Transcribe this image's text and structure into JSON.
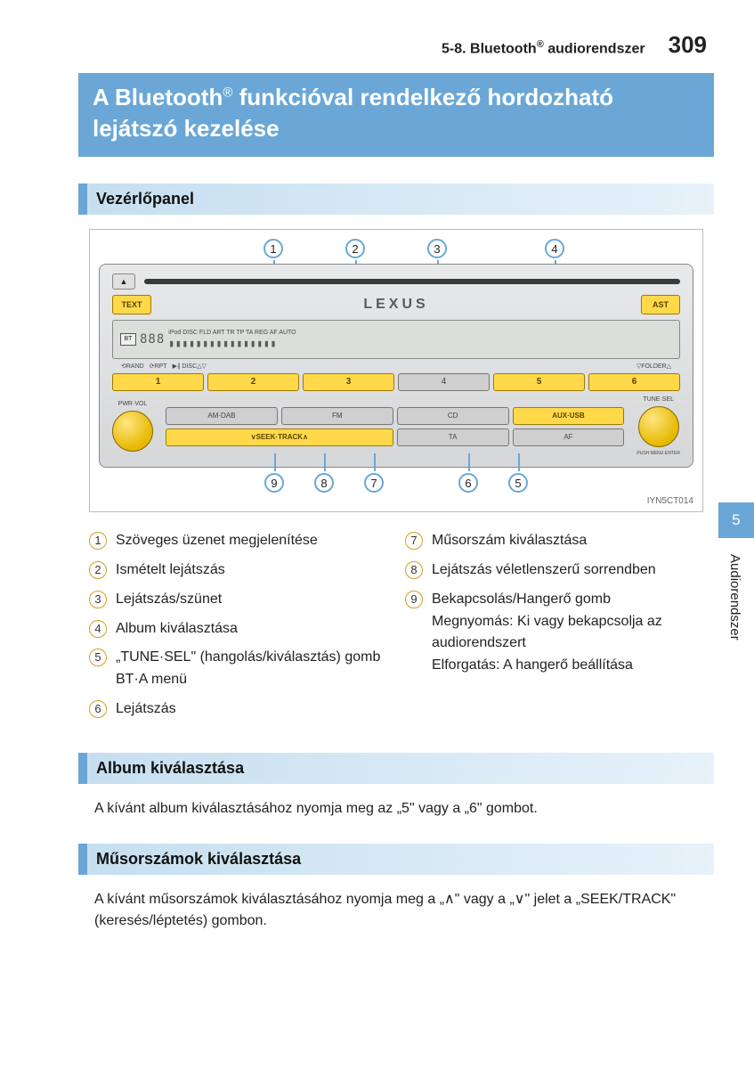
{
  "header": {
    "section": "5-8. Bluetooth",
    "section_suffix": " audiorendszer",
    "page_number": "309"
  },
  "title": {
    "prefix": "A Bluetooth",
    "suffix": " funkcióval rendelkező hordozható lejátszó kezelése"
  },
  "sections": {
    "panel": "Vezérlőpanel",
    "album": "Album kiválasztása",
    "tracks": "Műsorszámok kiválasztása"
  },
  "radio": {
    "text_btn": "TEXT",
    "ast_btn": "AST",
    "brand": "LEXUS",
    "eject": "▲",
    "disp_icons": "BT",
    "disp_seg": "888",
    "disp_top_small": "iPod DISC   FLD ART TR        TP TA REG AF AUTO",
    "disp_bars": "▮▮▮▮▮▮▮▮▮▮▮▮▮▮▮▮",
    "disp_sub": [
      "⟲RAND",
      "⟳RPT",
      "▶∥ DISC△▽",
      "▽FOLDER△"
    ],
    "presets": [
      "1",
      "2",
      "3",
      "4",
      "5",
      "6"
    ],
    "preset_yellow_idx": [
      0,
      1,
      2,
      4,
      5
    ],
    "knob_left_label": "PWR·VOL",
    "knob_right_label": "TUNE·SEL",
    "knob_right_sub": "PUSH MENU·ENTER",
    "buttons": [
      "AM·DAB",
      "FM",
      "CD",
      "AUX·USB",
      "∨SEEK·TRACK∧",
      "TA",
      "AF"
    ],
    "button_yellow_idx": [
      3,
      4
    ],
    "img_code": "IYN5CT014",
    "callouts_top": [
      "1",
      "2",
      "3",
      "4"
    ],
    "callouts_bottom": [
      "9",
      "8",
      "7",
      "6",
      "5"
    ]
  },
  "legend": {
    "left": [
      {
        "n": "1",
        "t": "Szöveges üzenet megjelenítése"
      },
      {
        "n": "2",
        "t": "Ismételt lejátszás"
      },
      {
        "n": "3",
        "t": "Lejátszás/szünet"
      },
      {
        "n": "4",
        "t": "Album kiválasztása"
      },
      {
        "n": "5",
        "t": "„TUNE·SEL\" (hangolás/kiválasztás) gomb\nBT·A menü"
      },
      {
        "n": "6",
        "t": "Lejátszás"
      }
    ],
    "right": [
      {
        "n": "7",
        "t": "Műsorszám kiválasztása"
      },
      {
        "n": "8",
        "t": "Lejátszás véletlenszerű sorrendben"
      },
      {
        "n": "9",
        "t": "Bekapcsolás/Hangerő gomb\nMegnyomás: Ki vagy bekapcsolja az audiorendszert\nElforgatás: A hangerő beállítása"
      }
    ]
  },
  "paragraphs": {
    "album": "A kívánt album kiválasztásához nyomja meg az „5\" vagy a „6\" gombot.",
    "tracks": "A kívánt műsorszámok kiválasztásához nyomja meg a „∧\"  vagy a „∨\" jelet a „SEEK/TRACK\" (keresés/léptetés) gombon."
  },
  "side_tab": {
    "number": "5",
    "label": "Audiorendszer"
  },
  "colors": {
    "primary": "#6aa7d6",
    "heading_bg_left": "#c6dff0",
    "yellow": "#ffd94a",
    "legend_ring": "#d4a020"
  }
}
